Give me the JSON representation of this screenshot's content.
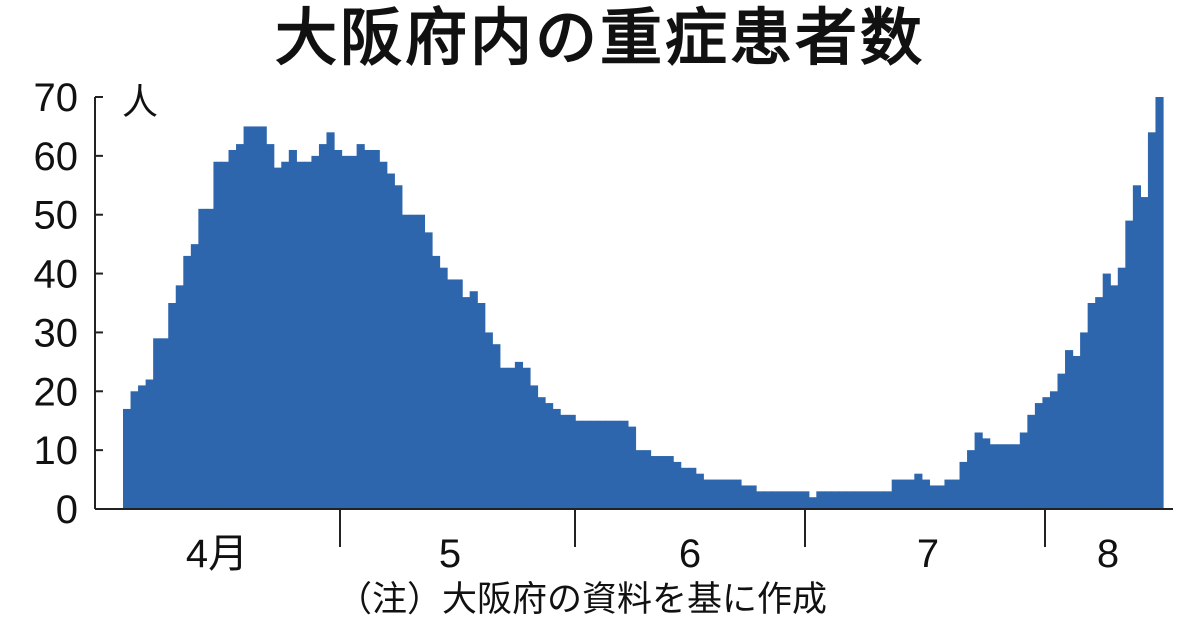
{
  "chart_data": {
    "type": "bar",
    "title": "大阪府内の重症患者数",
    "ylabel": "人",
    "ylim": [
      0,
      70
    ],
    "yticks": [
      0,
      10,
      20,
      30,
      40,
      50,
      60,
      70
    ],
    "month_labels": [
      "4月",
      "5",
      "6",
      "7",
      "8"
    ],
    "note": "（注）大阪府の資料を基に作成",
    "bar_color": "#2e66ad",
    "values": [
      17,
      20,
      21,
      22,
      29,
      29,
      35,
      38,
      43,
      45,
      51,
      51,
      59,
      59,
      61,
      62,
      65,
      65,
      65,
      62,
      58,
      59,
      61,
      59,
      59,
      60,
      62,
      64,
      61,
      60,
      60,
      62,
      61,
      61,
      59,
      57,
      55,
      50,
      50,
      50,
      47,
      43,
      41,
      39,
      39,
      36,
      37,
      35,
      30,
      28,
      24,
      24,
      25,
      24,
      21,
      19,
      18,
      17,
      16,
      16,
      15,
      15,
      15,
      15,
      15,
      15,
      15,
      14,
      10,
      10,
      9,
      9,
      9,
      8,
      7,
      7,
      6,
      5,
      5,
      5,
      5,
      5,
      4,
      4,
      3,
      3,
      3,
      3,
      3,
      3,
      3,
      2,
      3,
      3,
      3,
      3,
      3,
      3,
      3,
      3,
      3,
      3,
      5,
      5,
      5,
      6,
      5,
      4,
      4,
      5,
      5,
      8,
      10,
      13,
      12,
      11,
      11,
      11,
      11,
      13,
      16,
      18,
      19,
      20,
      23,
      27,
      26,
      30,
      35,
      36,
      40,
      38,
      41,
      49,
      55,
      53,
      64,
      70
    ]
  }
}
